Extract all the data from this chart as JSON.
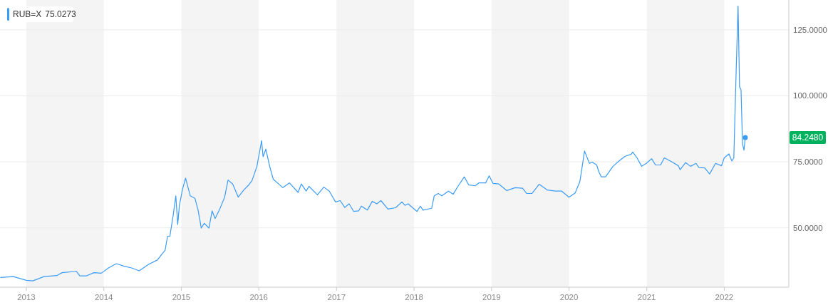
{
  "chart_data": {
    "type": "line",
    "legend": "top left",
    "grid": "y",
    "xlim": [
      "2012-08-30",
      "2022-11-01"
    ],
    "xticks": [
      "2013",
      "2014",
      "2015",
      "2016",
      "2017",
      "2018",
      "2019",
      "2020",
      "2021",
      "2022"
    ],
    "ylim": [
      27.5,
      136.3
    ],
    "yticks": [
      {
        "value": 50,
        "label": "50.0000"
      },
      {
        "value": 75,
        "label": "75.0000"
      },
      {
        "value": 100,
        "label": "100.0000"
      },
      {
        "value": 125,
        "label": "125.0000"
      }
    ],
    "bands": [
      {
        "axis": "x",
        "from": "2013",
        "to": "2014",
        "color": "#f4f4f4"
      },
      {
        "axis": "x",
        "from": "2015",
        "to": "2016",
        "color": "#f4f4f4"
      },
      {
        "axis": "x",
        "from": "2017",
        "to": "2018",
        "color": "#f4f4f4"
      },
      {
        "axis": "x",
        "from": "2019",
        "to": "2020",
        "color": "#f4f4f4"
      },
      {
        "axis": "x",
        "from": "2021",
        "to": "2022",
        "color": "#f4f4f4"
      }
    ],
    "annotations": [
      "75.0273",
      "84.2480"
    ],
    "series": [
      {
        "name": "RUB=X",
        "color": "#3b9cf5",
        "x": [
          "2012-09-01",
          "2012-11-01",
          "2013-01-01",
          "2013-02-01",
          "2013-03-25",
          "2013-05-25",
          "2013-06-18",
          "2013-08-25",
          "2013-09-10",
          "2013-10-12",
          "2013-11-15",
          "2013-12-20",
          "2014-01-23",
          "2014-03-01",
          "2014-04-05",
          "2014-05-12",
          "2014-06-17",
          "2014-08-01",
          "2014-09-10",
          "2014-10-17",
          "2014-10-28",
          "2014-11-08",
          "2014-11-23",
          "2014-12-06",
          "2014-12-15",
          "2014-12-23",
          "2015-01-07",
          "2015-01-21",
          "2015-02-12",
          "2015-03-06",
          "2015-03-21",
          "2015-04-05",
          "2015-04-19",
          "2015-05-11",
          "2015-05-26",
          "2015-06-09",
          "2015-07-01",
          "2015-07-24",
          "2015-08-09",
          "2015-08-31",
          "2015-09-26",
          "2015-10-22",
          "2015-11-13",
          "2015-11-30",
          "2015-12-23",
          "2016-01-14",
          "2016-01-21",
          "2016-02-03",
          "2016-02-21",
          "2016-03-09",
          "2016-04-23",
          "2016-05-24",
          "2016-07-04",
          "2016-07-19",
          "2016-08-11",
          "2016-08-24",
          "2016-10-03",
          "2016-11-02",
          "2016-11-28",
          "2016-12-27",
          "2017-01-18",
          "2017-02-09",
          "2017-03-01",
          "2017-03-23",
          "2017-04-15",
          "2017-04-28",
          "2017-05-26",
          "2017-06-18",
          "2017-07-10",
          "2017-07-29",
          "2017-08-31",
          "2017-10-06",
          "2017-11-05",
          "2017-11-19",
          "2017-12-04",
          "2018-01-15",
          "2018-01-31",
          "2018-02-12",
          "2018-03-25",
          "2018-04-06",
          "2018-04-25",
          "2018-05-12",
          "2018-06-12",
          "2018-07-04",
          "2018-07-30",
          "2018-08-26",
          "2018-09-15",
          "2018-10-16",
          "2018-11-02",
          "2018-12-04",
          "2018-12-21",
          "2019-01-08",
          "2019-02-04",
          "2019-03-14",
          "2019-04-22",
          "2019-05-27",
          "2019-06-16",
          "2019-07-10",
          "2019-08-13",
          "2019-09-21",
          "2019-10-29",
          "2019-11-27",
          "2020-01-01",
          "2020-01-30",
          "2020-02-21",
          "2020-03-14",
          "2020-04-06",
          "2020-04-19",
          "2020-05-10",
          "2020-05-21",
          "2020-06-01",
          "2020-06-21",
          "2020-07-26",
          "2020-08-23",
          "2020-09-21",
          "2020-10-19",
          "2020-10-27",
          "2020-11-16",
          "2020-12-08",
          "2020-12-30",
          "2021-01-24",
          "2021-02-11",
          "2021-03-07",
          "2021-03-25",
          "2021-04-27",
          "2021-05-30",
          "2021-06-07",
          "2021-07-03",
          "2021-07-26",
          "2021-08-21",
          "2021-09-03",
          "2021-10-01",
          "2021-10-24",
          "2021-11-21",
          "2021-12-19",
          "2022-01-01",
          "2022-01-23",
          "2022-02-06",
          "2022-02-15",
          "2022-02-26",
          "2022-03-07",
          "2022-03-14",
          "2022-03-21",
          "2022-03-28",
          "2022-04-04",
          "2022-04-10"
        ],
        "values": [
          31.2,
          31.5,
          30.1,
          29.9,
          31.5,
          31.9,
          33.0,
          33.5,
          31.8,
          31.8,
          33.0,
          32.8,
          34.8,
          36.4,
          35.5,
          34.8,
          33.7,
          36.2,
          37.8,
          41.6,
          46.8,
          46.8,
          54.4,
          62.1,
          51.3,
          58.5,
          64.8,
          68.8,
          62.1,
          61.2,
          56.7,
          49.9,
          51.7,
          49.9,
          56.4,
          53.5,
          57.1,
          61.6,
          68.1,
          66.6,
          61.6,
          64.3,
          66.1,
          67.9,
          73.3,
          83.0,
          76.9,
          79.8,
          73.3,
          68.4,
          65.2,
          67.0,
          63.4,
          66.6,
          63.9,
          65.7,
          62.5,
          65.4,
          63.9,
          59.8,
          60.3,
          57.7,
          59.1,
          56.2,
          56.4,
          58.2,
          56.7,
          60.0,
          59.1,
          60.3,
          57.1,
          57.6,
          59.8,
          58.5,
          59.1,
          56.2,
          58.2,
          56.7,
          57.4,
          62.1,
          63.0,
          62.1,
          63.9,
          62.7,
          66.1,
          69.3,
          66.3,
          65.9,
          67.0,
          67.0,
          69.7,
          66.8,
          66.6,
          64.1,
          65.2,
          65.0,
          63.0,
          63.0,
          66.5,
          64.3,
          63.9,
          63.9,
          61.6,
          63.2,
          67.5,
          79.1,
          74.4,
          74.9,
          73.8,
          71.1,
          69.3,
          69.3,
          73.3,
          75.3,
          77.1,
          77.8,
          78.7,
          76.5,
          73.3,
          74.4,
          76.2,
          73.8,
          73.8,
          76.5,
          75.1,
          73.5,
          72.0,
          74.7,
          73.3,
          74.4,
          72.9,
          72.7,
          70.4,
          74.4,
          73.5,
          76.5,
          78.0,
          75.3,
          76.5,
          109.3,
          134.0,
          103.4,
          102.3,
          81.8,
          79.4,
          84.2
        ]
      }
    ]
  }
}
